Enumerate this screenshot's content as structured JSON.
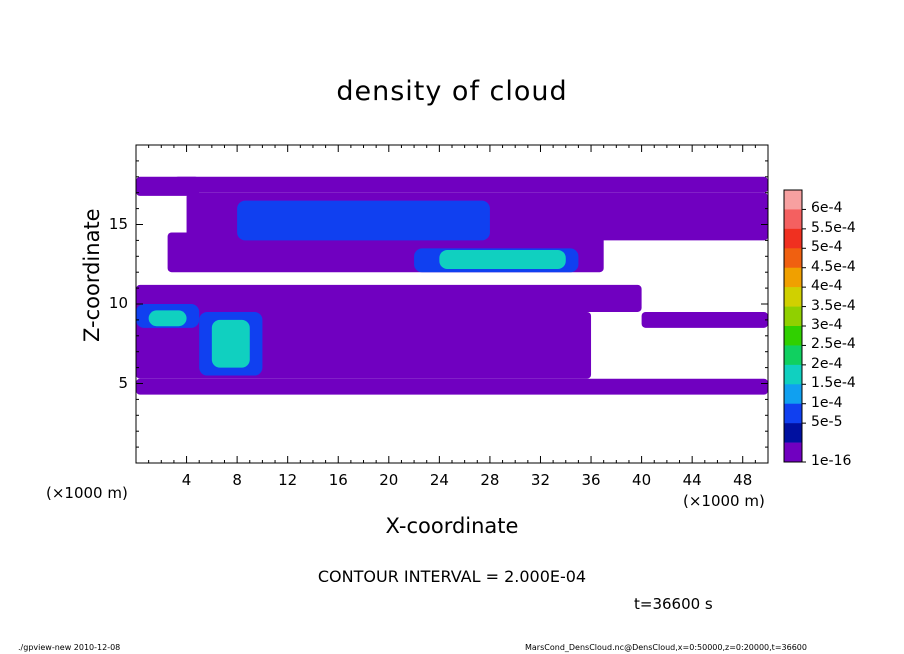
{
  "chart_data": {
    "type": "heatmap",
    "title": "density of cloud",
    "xlabel": "X-coordinate",
    "ylabel": "Z-coordinate",
    "x_unit_label": "(×1000 m)",
    "xlim": [
      0,
      50
    ],
    "ylim": [
      0,
      20
    ],
    "x_ticks": [
      4,
      8,
      12,
      16,
      20,
      24,
      28,
      32,
      36,
      40,
      44,
      48
    ],
    "y_ticks": [
      5,
      10,
      15
    ],
    "colorbar": {
      "labels": [
        "6e-4",
        "5.5e-4",
        "5e-4",
        "4.5e-4",
        "4e-4",
        "3.5e-4",
        "3e-4",
        "2.5e-4",
        "2e-4",
        "1.5e-4",
        "1e-4",
        "5e-5",
        "1e-16"
      ],
      "colors": [
        "#f7a0a0",
        "#f46060",
        "#f03020",
        "#f06010",
        "#f0a000",
        "#d0d000",
        "#90d000",
        "#30d000",
        "#10d060",
        "#10d0c0",
        "#10a0f0",
        "#1040f0",
        "#0010a0",
        "#7000c0"
      ]
    },
    "cloud_regions": [
      {
        "level": 1,
        "x": [
          0,
          50
        ],
        "z": [
          4.3,
          5.3
        ]
      },
      {
        "level": 1,
        "x": [
          3,
          50
        ],
        "z": [
          17.0,
          18.0
        ]
      },
      {
        "level": 1,
        "x": [
          0,
          5
        ],
        "z": [
          16.8,
          18.0
        ]
      },
      {
        "level": 1,
        "x": [
          4,
          50
        ],
        "z": [
          14.0,
          17.0
        ]
      },
      {
        "level": 1,
        "x": [
          2.5,
          37
        ],
        "z": [
          12.0,
          14.5
        ]
      },
      {
        "level": 1,
        "x": [
          0,
          40
        ],
        "z": [
          9.5,
          11.2
        ]
      },
      {
        "level": 1,
        "x": [
          0,
          36
        ],
        "z": [
          5.3,
          9.5
        ]
      },
      {
        "level": 1,
        "x": [
          40,
          50
        ],
        "z": [
          8.5,
          9.5
        ]
      },
      {
        "level": 2,
        "x": [
          8,
          28
        ],
        "z": [
          14.0,
          16.5
        ]
      },
      {
        "level": 2,
        "x": [
          22,
          35
        ],
        "z": [
          12.0,
          13.5
        ]
      },
      {
        "level": 2,
        "x": [
          0,
          5
        ],
        "z": [
          8.5,
          10.0
        ]
      },
      {
        "level": 2,
        "x": [
          5,
          10
        ],
        "z": [
          5.5,
          9.5
        ]
      },
      {
        "level": 3,
        "x": [
          24,
          34
        ],
        "z": [
          12.2,
          13.4
        ]
      },
      {
        "level": 3,
        "x": [
          1,
          4
        ],
        "z": [
          8.6,
          9.6
        ]
      },
      {
        "level": 3,
        "x": [
          6,
          9
        ],
        "z": [
          6.0,
          9.0
        ]
      }
    ]
  },
  "contour_interval": "CONTOUR INTERVAL = 2.000E-04",
  "time_label": "t=36600 s",
  "footer_left": "./gpview-new   2010-12-08",
  "footer_right": "MarsCond_DensCloud.nc@DensCloud,x=0:50000,z=0:20000,t=36600"
}
